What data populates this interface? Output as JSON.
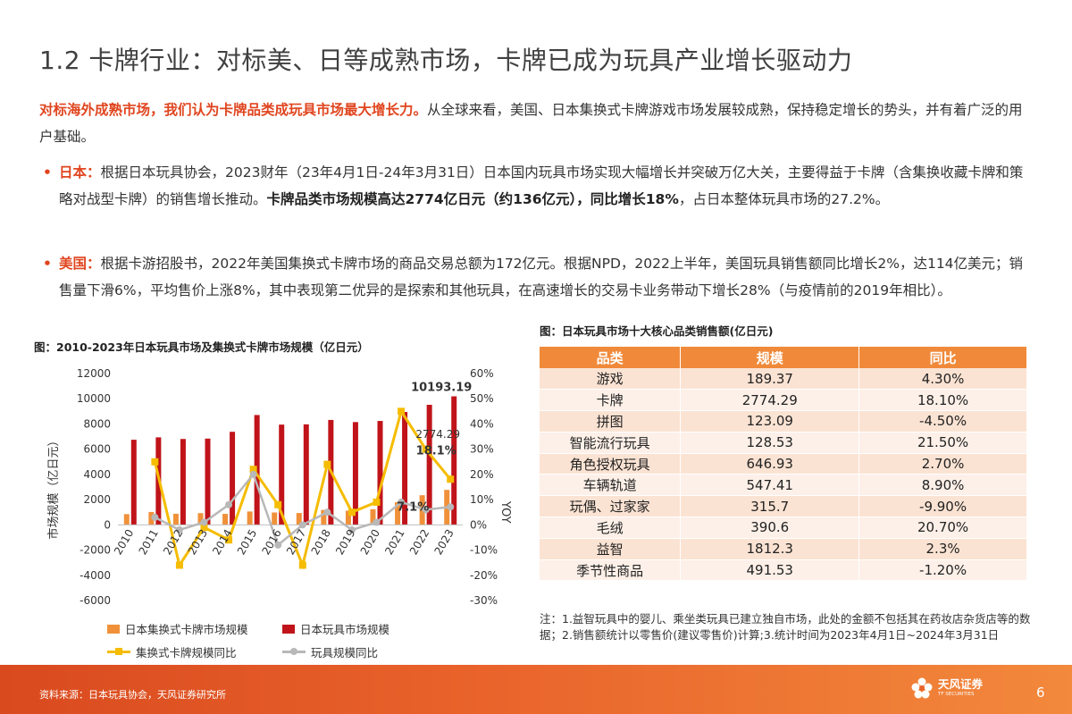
{
  "page": {
    "title": "1.2 卡牌行业：对标美、日等成熟市场，卡牌已成为玩具产业增长驱动力",
    "page_number": "6",
    "source": "资料来源：日本玩具协会，天风证券研究所"
  },
  "intro": {
    "highlight": "对标海外成熟市场，我们认为卡牌品类成玩具市场最大增长力。",
    "text": "从全球来看，美国、日本集换式卡牌游戏市场发展较成熟，保持稳定增长的势头，并有着广泛的用户基础。"
  },
  "bullets": {
    "jp": {
      "dot": "•",
      "lead": "日本：",
      "text1": "根据日本玩具协会，2023财年（23年4月1日-24年3月31日）日本国内玩具市场实现大幅增长并突破万亿大关，主要得益于卡牌（含集换收藏卡牌和策略对战型卡牌）的销售增长推动。",
      "bold": "卡牌品类市场规模高达2774亿日元（约136亿元），同比增长18%",
      "text2": "，占日本整体玩具市场的27.2%。"
    },
    "us": {
      "dot": "•",
      "lead": "美国：",
      "text": "根据卡游招股书，2022年美国集换式卡牌市场的商品交易总额为172亿元。根据NPD，2022上半年，美国玩具销售额同比增长2%，达114亿美元；销售量下滑6%，平均售价上涨8%，其中表现第二优异的是探索和其他玩具，在高速增长的交易卡业务带动下增长28%（与疫情前的2019年相比）。"
    }
  },
  "chart_title": "图：2010-2023年日本玩具市场及集换式卡牌市场规模（亿日元）",
  "chart_data": {
    "type": "bar",
    "categories": [
      "2010",
      "2011",
      "2012",
      "2013",
      "2014",
      "2015",
      "2016",
      "2017",
      "2018",
      "2019",
      "2020",
      "2021",
      "2022",
      "2023"
    ],
    "series": [
      {
        "name": "日本集换式卡牌市场规模",
        "kind": "bar",
        "axis": "left",
        "color": "#f0913a",
        "values": [
          850,
          1020,
          880,
          930,
          870,
          1060,
          980,
          940,
          1180,
          1120,
          1240,
          1800,
          2350,
          2774.29
        ]
      },
      {
        "name": "日本玩具市场规模",
        "kind": "bar",
        "axis": "left",
        "color": "#c0141a",
        "values": [
          6750,
          6940,
          6810,
          6840,
          7380,
          8710,
          7950,
          7970,
          8320,
          8150,
          8240,
          8950,
          9520,
          10193.19
        ]
      },
      {
        "name": "集换式卡牌规模同比",
        "kind": "line",
        "axis": "right",
        "color": "#f5bc00",
        "values": [
          null,
          25,
          -16,
          -1,
          -6,
          22,
          8,
          -16,
          24,
          5,
          9,
          45,
          30,
          18.1
        ]
      },
      {
        "name": "玩具规模同比",
        "kind": "line",
        "axis": "right",
        "color": "#b8b8b8",
        "values": [
          null,
          3,
          -2,
          1,
          8,
          20,
          -8,
          0,
          5,
          -2,
          1,
          9,
          6,
          7.1
        ]
      }
    ],
    "ylabel": "市场规模（亿日元）",
    "y2label": "YOY",
    "ylim": [
      -6000,
      12000
    ],
    "y2lim": [
      -30,
      60
    ],
    "yticks": [
      "-6000",
      "-4000",
      "-2000",
      "0",
      "2000",
      "4000",
      "6000",
      "8000",
      "10000",
      "12000"
    ],
    "y2ticks": [
      "-30%",
      "-20%",
      "-10%",
      "0%",
      "10%",
      "20%",
      "30%",
      "40%",
      "50%",
      "60%"
    ],
    "annotations": {
      "market_2023": "10193.19",
      "card_2023": "2774.29",
      "card_yoy_2023": "18.1%",
      "toy_yoy_2023": "7.1%"
    },
    "legend_position": "bottom"
  },
  "table": {
    "title": "图：日本玩具市场十大核心品类销售额(亿日元)",
    "headers": [
      "品类",
      "规模",
      "同比"
    ],
    "rows": [
      [
        "游戏",
        "189.37",
        "4.30%"
      ],
      [
        "卡牌",
        "2774.29",
        "18.10%"
      ],
      [
        "拼图",
        "123.09",
        "-4.50%"
      ],
      [
        "智能流行玩具",
        "128.53",
        "21.50%"
      ],
      [
        "角色授权玩具",
        "646.93",
        "2.70%"
      ],
      [
        "车辆轨道",
        "547.41",
        "8.90%"
      ],
      [
        "玩偶、过家家",
        "315.7",
        "-9.90%"
      ],
      [
        "毛绒",
        "390.6",
        "20.70%"
      ],
      [
        "益智",
        "1812.3",
        "2.3%"
      ],
      [
        "季节性商品",
        "491.53",
        "-1.20%"
      ]
    ],
    "note": "注：1.益智玩具中的婴儿、乘坐类玩具已建立独自市场，此处的金额不包括其在药妆店杂货店等的数据；2.销售额统计以零售价(建议零售价)计算;3.统计时间为2023年4月1日~2024年3月31日"
  },
  "logo": {
    "cn": "天风证券",
    "en": "TF SECURITIES",
    "icon": "tf-flower-icon"
  },
  "colors": {
    "accent": "#e0451f",
    "table_header": "#f08a3a",
    "footer": "#e9632b"
  }
}
